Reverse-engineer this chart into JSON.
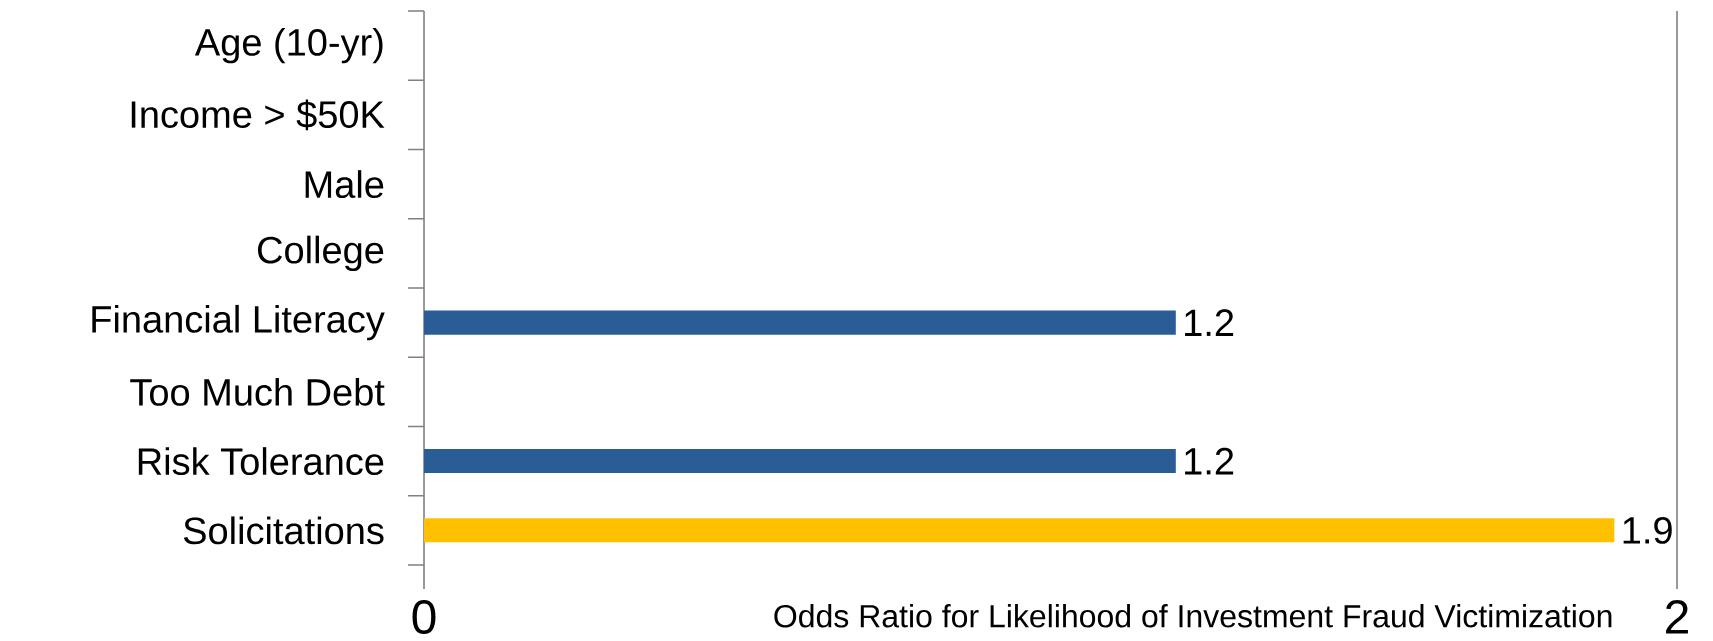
{
  "chart_data": {
    "type": "bar",
    "orientation": "horizontal",
    "categories": [
      "Age (10-yr)",
      "Income > $50K",
      "Male",
      "College",
      "Financial Literacy",
      "Too Much Debt",
      "Risk Tolerance",
      "Solicitations"
    ],
    "values": [
      null,
      null,
      null,
      null,
      1.2,
      null,
      1.2,
      1.9
    ],
    "colors": [
      null,
      null,
      null,
      null,
      "#2a5d96",
      null,
      "#2a5d96",
      "#ffc000"
    ],
    "xlabel": "Odds Ratio for Likelihood of Investment Fraud Victimization",
    "xlim": [
      0,
      2
    ],
    "xticks": [
      0,
      2
    ],
    "data_labels": true
  }
}
